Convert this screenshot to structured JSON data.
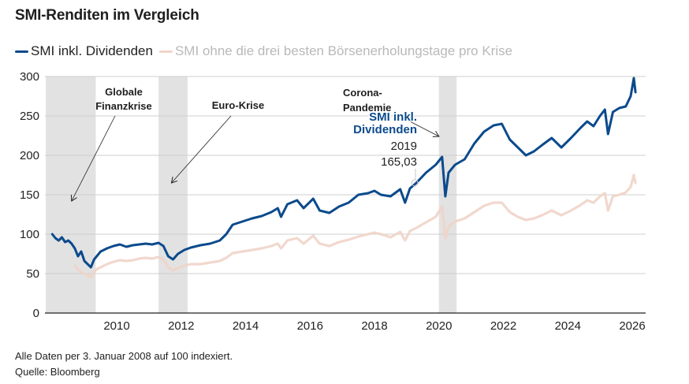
{
  "header": {
    "title": "SMI-Renditen im Vergleich"
  },
  "legend": [
    {
      "label": "SMI inkl. Dividenden",
      "color": "#0b4a8c"
    },
    {
      "label": "SMI ohne die drei besten Börsenerholungstage pro Krise",
      "color": "#f0d4c8"
    }
  ],
  "footer": {
    "note": "Alle Daten per 3. Januar 2008 auf 100 indexiert.",
    "source": "Quelle: Bloomberg"
  },
  "chart_data": {
    "type": "line",
    "title": "SMI-Renditen im Vergleich",
    "xlabel": "",
    "ylabel": "",
    "xlim": [
      2007.8,
      2026.4
    ],
    "ylim": [
      0,
      300
    ],
    "yticks": [
      0,
      50,
      100,
      150,
      200,
      250,
      300
    ],
    "ytick_labels": [
      "0",
      "50",
      "100",
      "150",
      "200",
      "250",
      "300"
    ],
    "xticks": [
      2010,
      2012,
      2014,
      2016,
      2018,
      2020,
      2022,
      2024,
      2026
    ],
    "xtick_labels": [
      "2010",
      "2012",
      "2014",
      "2016",
      "2018",
      "2020",
      "2022",
      "2024",
      "2026"
    ],
    "grid": "horizontal",
    "legend_position": "top-left",
    "crisis_periods": [
      {
        "label": "Globale Finanzkrise",
        "start": 2007.8,
        "end": 2009.35,
        "arrow_to": [
          2008.6,
          142
        ]
      },
      {
        "label": "Euro-Krise",
        "start": 2011.3,
        "end": 2012.2,
        "arrow_to": [
          2011.7,
          165
        ]
      },
      {
        "label": "Corona-Pandemie",
        "start": 2020.0,
        "end": 2020.55,
        "arrow_to": [
          2020.15,
          222
        ]
      }
    ],
    "callout": {
      "series": "SMI inkl. Dividenden",
      "series_label": "SMI inkl. Dividenden",
      "x_label": "2019",
      "value_label": "165,03",
      "x": 2019.25,
      "y": 165.03
    },
    "series": [
      {
        "name": "SMI inkl. Dividenden",
        "color": "#0b4a8c",
        "x": [
          2008.0,
          2008.1,
          2008.2,
          2008.3,
          2008.4,
          2008.5,
          2008.6,
          2008.7,
          2008.8,
          2008.9,
          2009.0,
          2009.1,
          2009.2,
          2009.3,
          2009.4,
          2009.5,
          2009.7,
          2009.9,
          2010.1,
          2010.3,
          2010.5,
          2010.7,
          2010.9,
          2011.1,
          2011.3,
          2011.45,
          2011.6,
          2011.75,
          2011.9,
          2012.1,
          2012.3,
          2012.6,
          2012.9,
          2013.2,
          2013.4,
          2013.6,
          2013.9,
          2014.2,
          2014.5,
          2014.8,
          2015.0,
          2015.1,
          2015.3,
          2015.6,
          2015.8,
          2016.1,
          2016.3,
          2016.6,
          2016.9,
          2017.2,
          2017.5,
          2017.8,
          2018.0,
          2018.2,
          2018.5,
          2018.8,
          2018.95,
          2019.1,
          2019.3,
          2019.6,
          2019.9,
          2020.1,
          2020.2,
          2020.3,
          2020.5,
          2020.8,
          2021.1,
          2021.4,
          2021.7,
          2021.95,
          2022.2,
          2022.45,
          2022.7,
          2022.95,
          2023.2,
          2023.5,
          2023.8,
          2024.1,
          2024.4,
          2024.6,
          2024.8,
          2025.0,
          2025.15,
          2025.25,
          2025.4,
          2025.6,
          2025.8,
          2025.95,
          2026.05,
          2026.1
        ],
        "values": [
          100,
          95,
          92,
          96,
          90,
          92,
          88,
          82,
          72,
          78,
          66,
          62,
          58,
          68,
          73,
          78,
          82,
          85,
          87,
          84,
          86,
          87,
          88,
          87,
          89,
          85,
          72,
          68,
          75,
          80,
          83,
          86,
          88,
          92,
          100,
          112,
          116,
          120,
          123,
          128,
          133,
          122,
          138,
          143,
          133,
          145,
          130,
          127,
          135,
          140,
          150,
          152,
          155,
          150,
          148,
          157,
          140,
          158,
          165,
          178,
          188,
          198,
          148,
          178,
          188,
          195,
          215,
          230,
          238,
          240,
          220,
          210,
          200,
          205,
          213,
          222,
          210,
          222,
          235,
          243,
          237,
          250,
          258,
          227,
          255,
          260,
          262,
          275,
          298,
          280
        ]
      },
      {
        "name": "SMI ohne die drei besten Börsenerholungstage pro Krise",
        "color": "#f0d4c8",
        "x": [
          2008.7,
          2008.8,
          2008.9,
          2009.0,
          2009.1,
          2009.2,
          2009.3,
          2009.4,
          2009.5,
          2009.7,
          2009.9,
          2010.1,
          2010.3,
          2010.5,
          2010.7,
          2010.9,
          2011.1,
          2011.3,
          2011.45,
          2011.6,
          2011.75,
          2011.9,
          2012.1,
          2012.3,
          2012.6,
          2012.9,
          2013.2,
          2013.4,
          2013.6,
          2013.9,
          2014.2,
          2014.5,
          2014.8,
          2015.0,
          2015.1,
          2015.3,
          2015.6,
          2015.8,
          2016.1,
          2016.3,
          2016.6,
          2016.9,
          2017.2,
          2017.5,
          2017.8,
          2018.0,
          2018.2,
          2018.5,
          2018.8,
          2018.95,
          2019.1,
          2019.3,
          2019.6,
          2019.9,
          2020.1,
          2020.2,
          2020.3,
          2020.5,
          2020.8,
          2021.1,
          2021.4,
          2021.7,
          2021.95,
          2022.2,
          2022.45,
          2022.7,
          2022.95,
          2023.2,
          2023.5,
          2023.8,
          2024.1,
          2024.4,
          2024.6,
          2024.8,
          2025.0,
          2025.15,
          2025.25,
          2025.4,
          2025.6,
          2025.8,
          2025.95,
          2026.05,
          2026.1
        ],
        "values": [
          60,
          55,
          52,
          50,
          48,
          45,
          52,
          56,
          58,
          62,
          65,
          67,
          66,
          67,
          69,
          70,
          69,
          71,
          68,
          58,
          54,
          57,
          60,
          62,
          62,
          64,
          66,
          70,
          76,
          78,
          80,
          82,
          85,
          88,
          82,
          92,
          95,
          88,
          98,
          88,
          85,
          90,
          93,
          97,
          100,
          102,
          100,
          96,
          103,
          92,
          104,
          108,
          115,
          122,
          135,
          95,
          110,
          116,
          120,
          128,
          136,
          140,
          140,
          128,
          122,
          118,
          120,
          124,
          130,
          124,
          130,
          137,
          143,
          140,
          148,
          152,
          130,
          148,
          150,
          153,
          160,
          175,
          165
        ]
      }
    ]
  }
}
